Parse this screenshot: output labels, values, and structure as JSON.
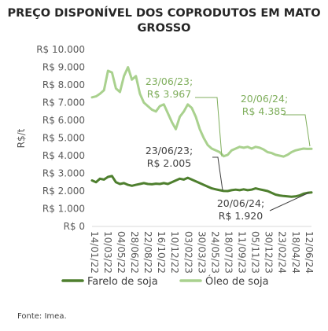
{
  "chart_data": {
    "type": "line",
    "title": "PREÇO DISPONÍVEL DOS COPRODUTOS EM MATO GROSSO",
    "ylabel": "R$/t",
    "ylim": [
      0,
      10000
    ],
    "yticks": [
      "R$ 0",
      "R$ 1.000",
      "R$ 2.000",
      "R$ 3.000",
      "R$ 4.000",
      "R$ 5.000",
      "R$ 6.000",
      "R$ 7.000",
      "R$ 8.000",
      "R$ 9.000",
      "R$ 10.000"
    ],
    "xticks": [
      "14/01/22",
      "10/03/22",
      "04/05/22",
      "28/06/22",
      "22/08/22",
      "16/10/22",
      "10/12/22",
      "03/02/23",
      "30/03/23",
      "24/05/23",
      "18/07/23",
      "11/09/23",
      "05/11/23",
      "30/12/23",
      "23/02/24",
      "18/04/24",
      "12/06/24"
    ],
    "grid": false,
    "legend_position": "bottom",
    "series": [
      {
        "name": "Farelo de soja",
        "color": "#4e7f2e",
        "values": [
          2600,
          2500,
          2700,
          2650,
          2800,
          2850,
          2500,
          2400,
          2450,
          2350,
          2300,
          2350,
          2400,
          2450,
          2400,
          2380,
          2420,
          2400,
          2450,
          2400,
          2500,
          2600,
          2700,
          2650,
          2750,
          2650,
          2550,
          2450,
          2350,
          2250,
          2150,
          2100,
          2050,
          2005,
          2000,
          2050,
          2080,
          2050,
          2100,
          2050,
          2080,
          2150,
          2100,
          2050,
          2000,
          1900,
          1800,
          1750,
          1720,
          1700,
          1680,
          1700,
          1750,
          1850,
          1900,
          1920
        ]
      },
      {
        "name": "Óleo de soja",
        "color": "#a9d18e",
        "values": [
          7300,
          7350,
          7500,
          7700,
          8800,
          8700,
          7800,
          7600,
          8500,
          9000,
          8300,
          8500,
          7500,
          7000,
          6800,
          6600,
          6500,
          6800,
          6900,
          6400,
          5900,
          5500,
          6200,
          6500,
          6900,
          6700,
          6200,
          5500,
          5000,
          4600,
          4400,
          4300,
          4200,
          3967,
          4050,
          4300,
          4400,
          4500,
          4450,
          4500,
          4400,
          4500,
          4450,
          4350,
          4200,
          4150,
          4050,
          4000,
          3950,
          4050,
          4200,
          4300,
          4350,
          4400,
          4380,
          4385
        ]
      }
    ],
    "annotations": [
      {
        "text": "23/06/23;\nR$ 3.967",
        "series": 1,
        "index": 33,
        "color": "#7fae5c"
      },
      {
        "text": "20/06/24;\nR$ 4.385",
        "series": 1,
        "index": 55,
        "color": "#7fae5c"
      },
      {
        "text": "23/06/23;\nR$ 2.005",
        "series": 0,
        "index": 33,
        "color": "#404040"
      },
      {
        "text": "20/06/24;\nR$ 1.920",
        "series": 0,
        "index": 55,
        "color": "#404040"
      }
    ]
  },
  "source": "Fonte: Imea."
}
